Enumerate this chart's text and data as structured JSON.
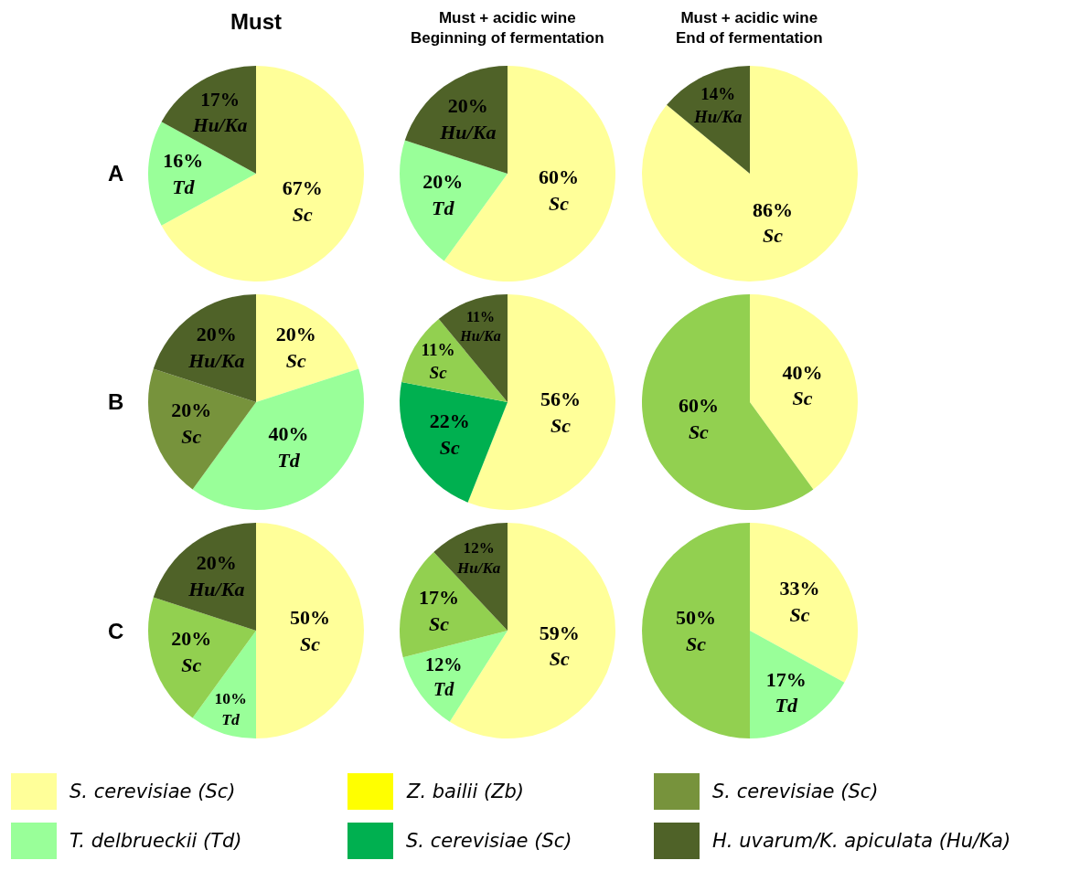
{
  "chart_data": [
    {
      "type": "pie",
      "title": "Must",
      "annotations": [
        "A"
      ],
      "categories": [
        null,
        null,
        null
      ],
      "values": [
        67,
        16,
        17
      ],
      "colors": [
        "#ffff99",
        "#99ff99",
        "#4f6228"
      ],
      "value_labels": [
        "67%\nSc",
        "16%\nTd",
        "17%\nHu/Ka"
      ]
    },
    {
      "type": "pie",
      "title": "Must + acidic wine\nBeginning of fermentation",
      "categories": [
        null,
        null,
        null
      ],
      "values": [
        60,
        20,
        20
      ],
      "colors": [
        "#ffff99",
        "#99ff99",
        "#4f6228"
      ],
      "value_labels": [
        "60%\nSc",
        "20%\nTd",
        "20%\nHu/Ka"
      ]
    },
    {
      "type": "pie",
      "title": "Must + acidic wine\nEnd of fermentation",
      "categories": [
        null,
        null
      ],
      "values": [
        86,
        14
      ],
      "colors": [
        "#ffff99",
        "#4f6228"
      ],
      "value_labels": [
        "86%\nSc",
        "14%\nHu/Ka"
      ]
    },
    {
      "type": "pie",
      "annotations": [
        "B"
      ],
      "categories": [
        null,
        null,
        null,
        null
      ],
      "values": [
        20,
        40,
        20,
        20
      ],
      "colors": [
        "#ffff99",
        "#99ff99",
        "#77933c",
        "#4f6228"
      ],
      "value_labels": [
        "20%\nSc",
        "40%\nTd",
        "20%\nSc",
        "20%\nHu/Ka"
      ]
    },
    {
      "type": "pie",
      "categories": [
        null,
        null,
        null,
        null
      ],
      "values": [
        56,
        22,
        11,
        11
      ],
      "colors": [
        "#ffff99",
        "#00b050",
        "#92d050",
        "#4f6228"
      ],
      "value_labels": [
        "56%\nSc",
        "22%\nSc",
        "11%\nSc",
        "11%\nHu/Ka"
      ]
    },
    {
      "type": "pie",
      "categories": [
        null,
        null
      ],
      "values": [
        40,
        60
      ],
      "colors": [
        "#ffff99",
        "#92d050"
      ],
      "value_labels": [
        "40%\nSc",
        "60%\nSc"
      ]
    },
    {
      "type": "pie",
      "annotations": [
        "C"
      ],
      "categories": [
        null,
        null,
        null,
        null
      ],
      "values": [
        50,
        10,
        20,
        20
      ],
      "colors": [
        "#ffff99",
        "#99ff99",
        "#92d050",
        "#4f6228"
      ],
      "value_labels": [
        "50%\nSc",
        "10%\nTd",
        "20%\nSc",
        "20%\nHu/Ka"
      ]
    },
    {
      "type": "pie",
      "categories": [
        null,
        null,
        null,
        null
      ],
      "values": [
        59,
        12,
        17,
        12
      ],
      "colors": [
        "#ffff99",
        "#99ff99",
        "#92d050",
        "#4f6228"
      ],
      "value_labels": [
        "59%\nSc",
        "12%\nTd",
        "17%\nSc",
        "12%\nHu/Ka"
      ]
    },
    {
      "type": "pie",
      "categories": [
        null,
        null,
        null
      ],
      "values": [
        33,
        17,
        50
      ],
      "colors": [
        "#ffff99",
        "#99ff99",
        "#92d050"
      ],
      "value_labels": [
        "33%\nSc",
        "17%\nTd",
        "50%\nSc"
      ]
    },
    {
      "type": "other",
      "categories": [
        "S. cerevisiae (Sc)",
        "Z. bailii (Zb)",
        "S. cerevisiae (Sc)",
        "T. delbrueckii (Td)",
        "S. cerevisiae (Sc)",
        "H. uvarum/K. apiculata (Hu/Ka)"
      ],
      "colors": [
        "#ffff99",
        "#ffff00",
        "#77933c",
        "#99ff99",
        "#00b050",
        "#4f6228"
      ]
    }
  ]
}
